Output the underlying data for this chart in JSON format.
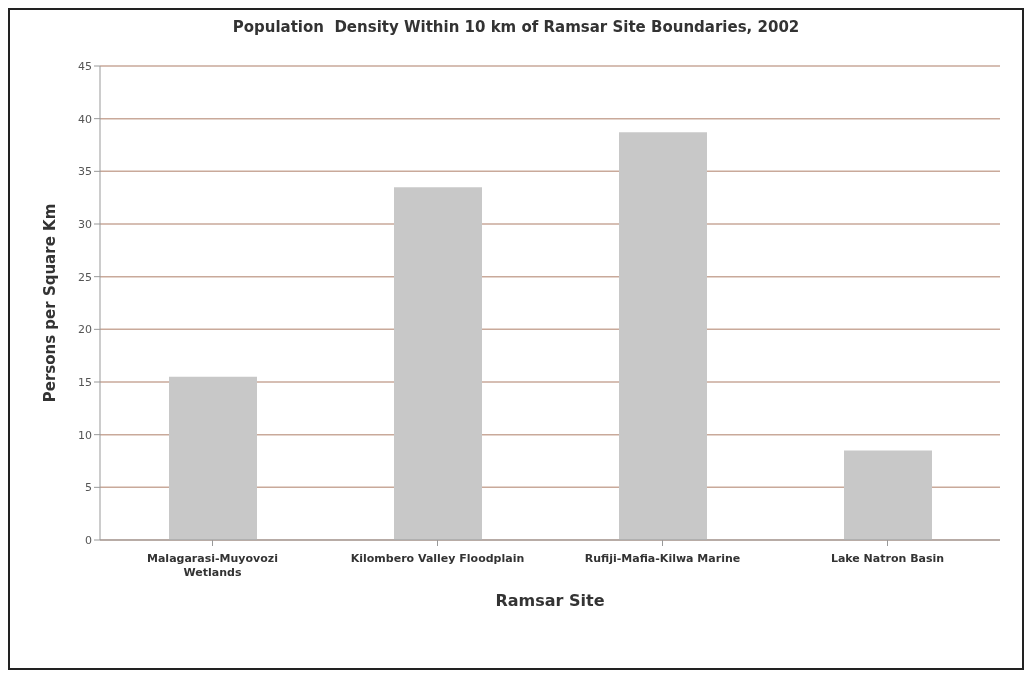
{
  "chart_data": {
    "type": "bar",
    "title": "Population  Density Within 10 km of Ramsar Site Boundaries, 2002",
    "xlabel": "Ramsar Site",
    "ylabel": "Persons per Square Km",
    "categories": [
      "Malagarasi-Muyovozi Wetlands",
      "Kilombero Valley Floodplain",
      "Rufiji-Mafia-Kilwa Marine",
      "Lake Natron Basin"
    ],
    "values": [
      15.5,
      33.5,
      38.7,
      8.5
    ],
    "color": "#c8c8c8",
    "ylim": [
      0,
      45
    ],
    "yticks": [
      0,
      5,
      10,
      15,
      20,
      25,
      30,
      35,
      40,
      45
    ],
    "grid": "y",
    "legend": false
  }
}
